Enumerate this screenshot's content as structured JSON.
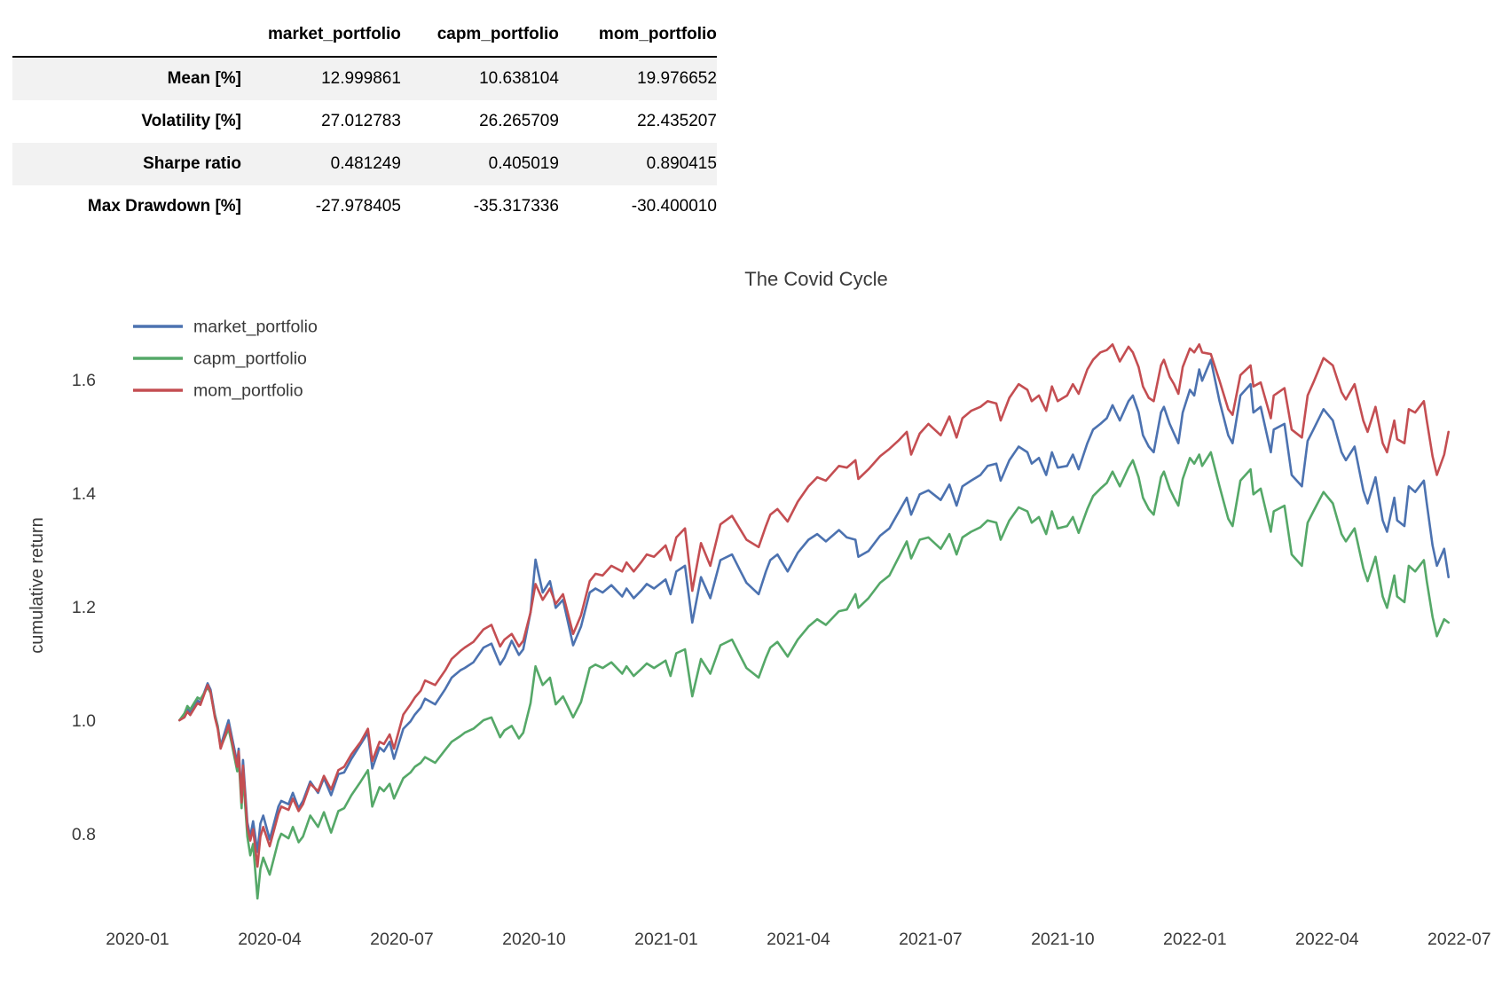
{
  "table": {
    "columns": [
      "market_portfolio",
      "capm_portfolio",
      "mom_portfolio"
    ],
    "rows": [
      {
        "label": "Mean [%]",
        "values": [
          "12.999861",
          "10.638104",
          "19.976652"
        ]
      },
      {
        "label": "Volatility [%]",
        "values": [
          "27.012783",
          "26.265709",
          "22.435207"
        ]
      },
      {
        "label": "Sharpe ratio",
        "values": [
          "0.481249",
          "0.405019",
          "0.890415"
        ]
      },
      {
        "label": "Max Drawdown [%]",
        "values": [
          "-27.978405",
          "-35.317336",
          "-30.400010"
        ]
      }
    ]
  },
  "chart_data": {
    "type": "line",
    "title": "The Covid Cycle",
    "xlabel": "",
    "ylabel": "cumulative return",
    "grid": false,
    "legend_position": "upper left",
    "ylim": [
      0.64,
      1.72
    ],
    "y_tick_labels": [
      "1.6",
      "1.4",
      "1.2",
      "1.0",
      "0.8"
    ],
    "x_tick_labels": [
      "2020-01",
      "2020-04",
      "2020-07",
      "2020-10",
      "2021-01",
      "2021-04",
      "2021-07",
      "2021-10",
      "2022-01",
      "2022-04",
      "2022-07"
    ],
    "x": [
      "2020-01-30",
      "2020-02-03",
      "2020-02-05",
      "2020-02-07",
      "2020-02-12",
      "2020-02-14",
      "2020-02-19",
      "2020-02-21",
      "2020-02-24",
      "2020-02-26",
      "2020-02-28",
      "2020-03-03",
      "2020-03-05",
      "2020-03-09",
      "2020-03-10",
      "2020-03-12",
      "2020-03-13",
      "2020-03-16",
      "2020-03-18",
      "2020-03-20",
      "2020-03-23",
      "2020-03-25",
      "2020-03-27",
      "2020-04-01",
      "2020-04-07",
      "2020-04-09",
      "2020-04-14",
      "2020-04-17",
      "2020-04-21",
      "2020-04-24",
      "2020-04-29",
      "2020-05-04",
      "2020-05-08",
      "2020-05-13",
      "2020-05-18",
      "2020-05-22",
      "2020-05-27",
      "2020-06-03",
      "2020-06-08",
      "2020-06-11",
      "2020-06-16",
      "2020-06-19",
      "2020-06-23",
      "2020-06-26",
      "2020-07-02",
      "2020-07-07",
      "2020-07-10",
      "2020-07-14",
      "2020-07-17",
      "2020-07-24",
      "2020-07-31",
      "2020-08-05",
      "2020-08-11",
      "2020-08-14",
      "2020-08-20",
      "2020-08-27",
      "2020-09-02",
      "2020-09-08",
      "2020-09-11",
      "2020-09-16",
      "2020-09-21",
      "2020-09-24",
      "2020-09-29",
      "2020-10-02",
      "2020-10-07",
      "2020-10-12",
      "2020-10-16",
      "2020-10-21",
      "2020-10-28",
      "2020-11-03",
      "2020-11-09",
      "2020-11-13",
      "2020-11-18",
      "2020-11-24",
      "2020-12-01",
      "2020-12-04",
      "2020-12-09",
      "2020-12-14",
      "2020-12-18",
      "2020-12-23",
      "2020-12-31",
      "2021-01-04",
      "2021-01-08",
      "2021-01-14",
      "2021-01-19",
      "2021-01-25",
      "2021-02-01",
      "2021-02-08",
      "2021-02-16",
      "2021-02-22",
      "2021-02-26",
      "2021-03-04",
      "2021-03-09",
      "2021-03-12",
      "2021-03-17",
      "2021-03-24",
      "2021-03-31",
      "2021-04-08",
      "2021-04-14",
      "2021-04-20",
      "2021-04-29",
      "2021-05-04",
      "2021-05-10",
      "2021-05-12",
      "2021-05-19",
      "2021-05-27",
      "2021-06-03",
      "2021-06-09",
      "2021-06-15",
      "2021-06-18",
      "2021-06-24",
      "2021-06-30",
      "2021-07-08",
      "2021-07-14",
      "2021-07-19",
      "2021-07-23",
      "2021-07-29",
      "2021-08-05",
      "2021-08-10",
      "2021-08-16",
      "2021-08-19",
      "2021-08-25",
      "2021-09-01",
      "2021-09-07",
      "2021-09-10",
      "2021-09-15",
      "2021-09-20",
      "2021-09-24",
      "2021-09-28",
      "2021-10-04",
      "2021-10-08",
      "2021-10-12",
      "2021-10-18",
      "2021-10-22",
      "2021-10-27",
      "2021-11-01",
      "2021-11-05",
      "2021-11-10",
      "2021-11-16",
      "2021-11-19",
      "2021-11-23",
      "2021-11-26",
      "2021-11-30",
      "2021-12-03",
      "2021-12-08",
      "2021-12-10",
      "2021-12-14",
      "2021-12-17",
      "2021-12-20",
      "2021-12-23",
      "2021-12-28",
      "2021-12-31",
      "2022-01-04",
      "2022-01-06",
      "2022-01-12",
      "2022-01-18",
      "2022-01-24",
      "2022-01-27",
      "2022-02-02",
      "2022-02-09",
      "2022-02-11",
      "2022-02-16",
      "2022-02-23",
      "2022-02-25",
      "2022-03-02",
      "2022-03-07",
      "2022-03-14",
      "2022-03-18",
      "2022-03-22",
      "2022-03-29",
      "2022-04-05",
      "2022-04-11",
      "2022-04-14",
      "2022-04-20",
      "2022-04-26",
      "2022-04-29",
      "2022-05-04",
      "2022-05-09",
      "2022-05-12",
      "2022-05-17",
      "2022-05-19",
      "2022-05-24",
      "2022-05-27",
      "2022-06-01",
      "2022-06-07",
      "2022-06-09",
      "2022-06-13",
      "2022-06-16",
      "2022-06-21",
      "2022-06-24"
    ],
    "series": [
      {
        "name": "market_portfolio",
        "color": "#4C72B0",
        "values": [
          1.0,
          1.008,
          1.02,
          1.014,
          1.035,
          1.031,
          1.065,
          1.054,
          1.01,
          0.99,
          0.955,
          1.0,
          0.975,
          0.925,
          0.95,
          0.862,
          0.93,
          0.82,
          0.795,
          0.822,
          0.768,
          0.818,
          0.832,
          0.79,
          0.848,
          0.858,
          0.852,
          0.872,
          0.845,
          0.858,
          0.892,
          0.872,
          0.898,
          0.868,
          0.905,
          0.908,
          0.932,
          0.958,
          0.978,
          0.915,
          0.952,
          0.945,
          0.962,
          0.932,
          0.985,
          0.998,
          1.01,
          1.022,
          1.038,
          1.028,
          1.055,
          1.075,
          1.088,
          1.092,
          1.102,
          1.128,
          1.135,
          1.098,
          1.11,
          1.14,
          1.115,
          1.125,
          1.19,
          1.283,
          1.225,
          1.245,
          1.198,
          1.212,
          1.132,
          1.165,
          1.225,
          1.232,
          1.225,
          1.238,
          1.218,
          1.232,
          1.215,
          1.228,
          1.24,
          1.232,
          1.248,
          1.222,
          1.262,
          1.272,
          1.172,
          1.252,
          1.215,
          1.282,
          1.292,
          1.262,
          1.242,
          1.222,
          1.262,
          1.282,
          1.292,
          1.262,
          1.295,
          1.318,
          1.328,
          1.315,
          1.335,
          1.322,
          1.318,
          1.288,
          1.298,
          1.325,
          1.338,
          1.365,
          1.392,
          1.362,
          1.398,
          1.405,
          1.388,
          1.415,
          1.378,
          1.412,
          1.422,
          1.432,
          1.448,
          1.452,
          1.422,
          1.458,
          1.482,
          1.472,
          1.452,
          1.462,
          1.432,
          1.472,
          1.445,
          1.448,
          1.468,
          1.442,
          1.488,
          1.512,
          1.522,
          1.532,
          1.555,
          1.528,
          1.562,
          1.572,
          1.542,
          1.502,
          1.482,
          1.472,
          1.542,
          1.552,
          1.522,
          1.505,
          1.488,
          1.542,
          1.582,
          1.572,
          1.618,
          1.598,
          1.635,
          1.562,
          1.502,
          1.488,
          1.572,
          1.592,
          1.542,
          1.552,
          1.472,
          1.512,
          1.522,
          1.432,
          1.412,
          1.492,
          1.512,
          1.548,
          1.528,
          1.472,
          1.458,
          1.482,
          1.405,
          1.382,
          1.428,
          1.352,
          1.332,
          1.392,
          1.352,
          1.342,
          1.412,
          1.402,
          1.422,
          1.382,
          1.308,
          1.272,
          1.302,
          1.252
        ]
      },
      {
        "name": "capm_portfolio",
        "color": "#55A868",
        "values": [
          1.0,
          1.012,
          1.025,
          1.019,
          1.04,
          1.037,
          1.058,
          1.048,
          1.008,
          0.988,
          0.952,
          0.985,
          0.962,
          0.91,
          0.935,
          0.845,
          0.905,
          0.795,
          0.762,
          0.782,
          0.686,
          0.738,
          0.758,
          0.728,
          0.788,
          0.8,
          0.792,
          0.812,
          0.785,
          0.795,
          0.832,
          0.812,
          0.838,
          0.802,
          0.84,
          0.845,
          0.868,
          0.892,
          0.912,
          0.848,
          0.882,
          0.875,
          0.888,
          0.862,
          0.898,
          0.908,
          0.918,
          0.925,
          0.935,
          0.925,
          0.948,
          0.962,
          0.972,
          0.978,
          0.985,
          1.0,
          1.005,
          0.97,
          0.982,
          0.99,
          0.968,
          0.978,
          1.03,
          1.095,
          1.062,
          1.075,
          1.028,
          1.042,
          1.005,
          1.032,
          1.092,
          1.098,
          1.092,
          1.102,
          1.082,
          1.095,
          1.078,
          1.09,
          1.1,
          1.092,
          1.105,
          1.078,
          1.118,
          1.125,
          1.042,
          1.108,
          1.082,
          1.132,
          1.142,
          1.112,
          1.092,
          1.075,
          1.11,
          1.128,
          1.138,
          1.112,
          1.142,
          1.165,
          1.178,
          1.168,
          1.192,
          1.195,
          1.222,
          1.198,
          1.215,
          1.242,
          1.255,
          1.285,
          1.315,
          1.285,
          1.318,
          1.322,
          1.302,
          1.328,
          1.292,
          1.322,
          1.332,
          1.34,
          1.352,
          1.348,
          1.318,
          1.352,
          1.375,
          1.368,
          1.348,
          1.358,
          1.328,
          1.368,
          1.338,
          1.342,
          1.358,
          1.33,
          1.372,
          1.395,
          1.408,
          1.418,
          1.438,
          1.412,
          1.445,
          1.458,
          1.428,
          1.392,
          1.372,
          1.362,
          1.428,
          1.438,
          1.408,
          1.392,
          1.378,
          1.425,
          1.462,
          1.452,
          1.468,
          1.448,
          1.472,
          1.412,
          1.355,
          1.342,
          1.422,
          1.442,
          1.398,
          1.408,
          1.332,
          1.368,
          1.378,
          1.292,
          1.272,
          1.348,
          1.368,
          1.402,
          1.382,
          1.328,
          1.315,
          1.338,
          1.268,
          1.245,
          1.288,
          1.218,
          1.198,
          1.255,
          1.218,
          1.208,
          1.272,
          1.262,
          1.282,
          1.245,
          1.182,
          1.148,
          1.178,
          1.172
        ]
      },
      {
        "name": "mom_portfolio",
        "color": "#C44E52",
        "values": [
          1.0,
          1.005,
          1.015,
          1.009,
          1.03,
          1.027,
          1.062,
          1.05,
          1.005,
          0.985,
          0.95,
          0.992,
          0.968,
          0.918,
          0.945,
          0.855,
          0.92,
          0.812,
          0.788,
          0.808,
          0.742,
          0.795,
          0.812,
          0.778,
          0.835,
          0.848,
          0.842,
          0.862,
          0.84,
          0.852,
          0.888,
          0.875,
          0.902,
          0.878,
          0.912,
          0.918,
          0.94,
          0.962,
          0.985,
          0.928,
          0.962,
          0.958,
          0.975,
          0.95,
          1.01,
          1.028,
          1.04,
          1.052,
          1.07,
          1.062,
          1.088,
          1.108,
          1.122,
          1.128,
          1.138,
          1.16,
          1.168,
          1.13,
          1.142,
          1.152,
          1.13,
          1.14,
          1.19,
          1.24,
          1.212,
          1.232,
          1.205,
          1.222,
          1.152,
          1.185,
          1.245,
          1.258,
          1.255,
          1.272,
          1.262,
          1.278,
          1.262,
          1.278,
          1.292,
          1.288,
          1.308,
          1.282,
          1.322,
          1.338,
          1.228,
          1.312,
          1.272,
          1.345,
          1.36,
          1.335,
          1.318,
          1.305,
          1.342,
          1.362,
          1.372,
          1.35,
          1.385,
          1.412,
          1.428,
          1.422,
          1.448,
          1.445,
          1.458,
          1.425,
          1.442,
          1.465,
          1.478,
          1.492,
          1.508,
          1.468,
          1.505,
          1.522,
          1.502,
          1.535,
          1.498,
          1.532,
          1.545,
          1.552,
          1.562,
          1.558,
          1.528,
          1.568,
          1.592,
          1.582,
          1.562,
          1.572,
          1.545,
          1.588,
          1.562,
          1.572,
          1.592,
          1.575,
          1.618,
          1.635,
          1.648,
          1.652,
          1.662,
          1.632,
          1.658,
          1.648,
          1.622,
          1.588,
          1.568,
          1.562,
          1.625,
          1.635,
          1.605,
          1.592,
          1.575,
          1.622,
          1.655,
          1.648,
          1.662,
          1.648,
          1.645,
          1.598,
          1.548,
          1.538,
          1.608,
          1.625,
          1.588,
          1.595,
          1.532,
          1.572,
          1.585,
          1.512,
          1.498,
          1.572,
          1.595,
          1.638,
          1.625,
          1.578,
          1.565,
          1.592,
          1.528,
          1.508,
          1.552,
          1.488,
          1.472,
          1.528,
          1.495,
          1.488,
          1.548,
          1.542,
          1.562,
          1.528,
          1.465,
          1.432,
          1.468,
          1.508
        ]
      }
    ]
  }
}
